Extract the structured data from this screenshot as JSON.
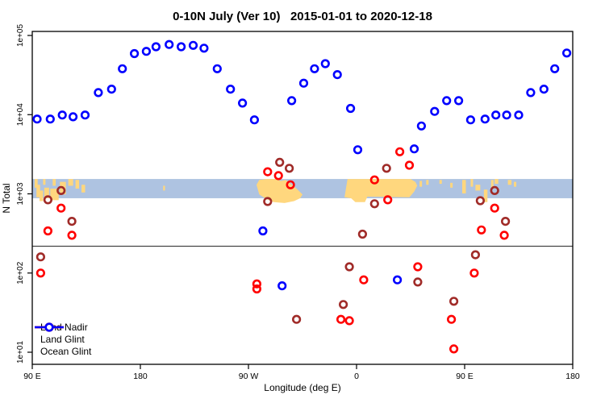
{
  "chart_data": {
    "type": "scatter",
    "title": "0-10N July (Ver 10)   2015-01-01 to 2020-12-18",
    "xlabel": "Longitude (deg E)",
    "ylabel": "N Total",
    "y_scale": "log",
    "xlim": [
      90,
      540
    ],
    "ylim_log10": [
      1,
      5
    ],
    "x_ticks": [
      {
        "lon": 90,
        "label": "90 E"
      },
      {
        "lon": 180,
        "label": "180"
      },
      {
        "lon": 270,
        "label": "90 W"
      },
      {
        "lon": 360,
        "label": "0"
      },
      {
        "lon": 450,
        "label": "90 E"
      },
      {
        "lon": 540,
        "label": "180"
      }
    ],
    "y_ticks": [
      {
        "log10": 1,
        "label": "1e+01"
      },
      {
        "log10": 2,
        "label": "1e+02"
      },
      {
        "log10": 3,
        "label": "1e+03"
      },
      {
        "log10": 4,
        "label": "1e+04"
      },
      {
        "log10": 5,
        "label": "1e+05"
      }
    ],
    "reference_line_N": 218,
    "grid": false,
    "legend_position": "bottom-left",
    "series": [
      {
        "name": "Land Nadir",
        "color": "#A02B28",
        "points": [
          [
            97,
            160
          ],
          [
            103,
            840
          ],
          [
            114,
            1100
          ],
          [
            123,
            450
          ],
          [
            286,
            800
          ],
          [
            296,
            2500
          ],
          [
            304,
            2100
          ],
          [
            310,
            26
          ],
          [
            349,
            40
          ],
          [
            354,
            120
          ],
          [
            365,
            310
          ],
          [
            375,
            750
          ],
          [
            385,
            2100
          ],
          [
            411,
            77
          ],
          [
            441,
            44
          ],
          [
            459,
            170
          ],
          [
            463,
            820
          ],
          [
            475,
            1100
          ],
          [
            484,
            450
          ]
        ]
      },
      {
        "name": "Land Glint",
        "color": "#FF0000",
        "points": [
          [
            97,
            100
          ],
          [
            103,
            340
          ],
          [
            114,
            660
          ],
          [
            123,
            300
          ],
          [
            277,
            73
          ],
          [
            277,
            63
          ],
          [
            286,
            1900
          ],
          [
            295,
            1700
          ],
          [
            305,
            1300
          ],
          [
            347,
            26
          ],
          [
            354,
            25
          ],
          [
            366,
            82
          ],
          [
            375,
            1500
          ],
          [
            386,
            840
          ],
          [
            396,
            3400
          ],
          [
            404,
            2300
          ],
          [
            411,
            120
          ],
          [
            439,
            26
          ],
          [
            441,
            11
          ],
          [
            458,
            100
          ],
          [
            464,
            350
          ],
          [
            475,
            660
          ],
          [
            483,
            300
          ]
        ]
      },
      {
        "name": "Ocean Glint",
        "color": "#0000FF",
        "points": [
          [
            94,
            8800
          ],
          [
            105,
            8800
          ],
          [
            115,
            9900
          ],
          [
            124,
            9400
          ],
          [
            134,
            9900
          ],
          [
            145,
            19000
          ],
          [
            156,
            21000
          ],
          [
            165,
            38000
          ],
          [
            175,
            59000
          ],
          [
            185,
            63000
          ],
          [
            193,
            72000
          ],
          [
            204,
            77000
          ],
          [
            214,
            72000
          ],
          [
            224,
            75000
          ],
          [
            233,
            69000
          ],
          [
            244,
            38000
          ],
          [
            255,
            21000
          ],
          [
            265,
            14000
          ],
          [
            275,
            8600
          ],
          [
            282,
            340
          ],
          [
            298,
            69
          ],
          [
            306,
            15000
          ],
          [
            316,
            25000
          ],
          [
            325,
            38000
          ],
          [
            334,
            44000
          ],
          [
            344,
            32000
          ],
          [
            355,
            12000
          ],
          [
            361,
            3600
          ],
          [
            394,
            82
          ],
          [
            408,
            3700
          ],
          [
            414,
            7200
          ],
          [
            425,
            11000
          ],
          [
            435,
            15000
          ],
          [
            445,
            15000
          ],
          [
            455,
            8600
          ],
          [
            467,
            8800
          ],
          [
            476,
            9900
          ],
          [
            485,
            9900
          ],
          [
            495,
            9900
          ],
          [
            505,
            19000
          ],
          [
            516,
            21000
          ],
          [
            525,
            38000
          ],
          [
            535,
            60000
          ]
        ]
      }
    ],
    "map_band": {
      "description": "0-10N latitude map strip overlay",
      "ocean_color": "#AEC3E1",
      "land_color": "#FFD77E",
      "N_top": 1540,
      "N_bottom": 880,
      "land_shapes": [
        {
          "type": "rect",
          "lon": [
            92,
            94.5
          ],
          "t": [
            0,
            0.45
          ]
        },
        {
          "type": "rect",
          "lon": [
            93.5,
            96.5
          ],
          "t": [
            0.3,
            0.95
          ]
        },
        {
          "type": "rect",
          "lon": [
            96,
            99
          ],
          "t": [
            0.6,
            1.15
          ]
        },
        {
          "type": "rect",
          "lon": [
            99,
            101
          ],
          "t": [
            0,
            0.3
          ]
        },
        {
          "type": "rect",
          "lon": [
            100,
            104
          ],
          "t": [
            0.45,
            1.0
          ]
        },
        {
          "type": "rect",
          "lon": [
            105,
            112
          ],
          "t": [
            0.5,
            1.1
          ]
        },
        {
          "type": "rect",
          "lon": [
            107,
            109.5
          ],
          "t": [
            0,
            0.35
          ]
        },
        {
          "type": "rect",
          "lon": [
            113,
            118
          ],
          "t": [
            0.15,
            0.8
          ]
        },
        {
          "type": "rect",
          "lon": [
            120,
            124
          ],
          "t": [
            0,
            0.35
          ]
        },
        {
          "type": "rect",
          "lon": [
            126,
            129
          ],
          "t": [
            0.05,
            0.5
          ]
        },
        {
          "type": "rect",
          "lon": [
            131,
            134
          ],
          "t": [
            0.3,
            0.7
          ]
        },
        {
          "type": "rect",
          "lon": [
            199,
            200.5
          ],
          "t": [
            0.35,
            0.6
          ]
        },
        {
          "type": "poly",
          "pts": [
            [
              276.7,
              0.3
            ],
            [
              279,
              0.05
            ],
            [
              285,
              0
            ],
            [
              292,
              0
            ],
            [
              297,
              0.1
            ],
            [
              301,
              0.05
            ],
            [
              305,
              0.25
            ],
            [
              310,
              0.5
            ],
            [
              315,
              0.8
            ],
            [
              313,
              1.0
            ],
            [
              308,
              1.15
            ],
            [
              300,
              1.25
            ],
            [
              291,
              1.2
            ],
            [
              285,
              1.05
            ],
            [
              279,
              0.8
            ]
          ]
        },
        {
          "type": "poly",
          "pts": [
            [
              350,
              0.95
            ],
            [
              352.5,
              0
            ],
            [
              405,
              0
            ],
            [
              409,
              0.15
            ],
            [
              410.5,
              0.35
            ],
            [
              408,
              0.65
            ],
            [
              404,
              0.95
            ],
            [
              369,
              0.92
            ],
            [
              367,
              1.2
            ],
            [
              359,
              1.2
            ],
            [
              355.5,
              1.0
            ]
          ]
        },
        {
          "type": "rect",
          "lon": [
            412.5,
            414.5
          ],
          "t": [
            0.1,
            0.4
          ]
        },
        {
          "type": "rect",
          "lon": [
            418,
            420
          ],
          "t": [
            0.05,
            0.3
          ]
        },
        {
          "type": "rect",
          "lon": [
            429,
            431
          ],
          "t": [
            0.05,
            0.25
          ]
        },
        {
          "type": "rect",
          "lon": [
            438,
            440
          ],
          "t": [
            0.2,
            0.45
          ]
        },
        {
          "type": "rect",
          "lon": [
            448,
            451
          ],
          "t": [
            0.05,
            0.75
          ]
        },
        {
          "type": "rect",
          "lon": [
            455,
            457
          ],
          "t": [
            0,
            0.4
          ]
        },
        {
          "type": "rect",
          "lon": [
            459,
            463
          ],
          "t": [
            0.3,
            0.6
          ]
        },
        {
          "type": "rect",
          "lon": [
            466,
            469
          ],
          "t": [
            0.55,
            1.2
          ]
        },
        {
          "type": "rect",
          "lon": [
            472,
            474
          ],
          "t": [
            0.05,
            0.5
          ]
        },
        {
          "type": "rect",
          "lon": [
            475,
            478
          ],
          "t": [
            0,
            0.25
          ]
        },
        {
          "type": "rect",
          "lon": [
            486,
            489
          ],
          "t": [
            0.05,
            0.3
          ]
        },
        {
          "type": "rect",
          "lon": [
            491,
            493
          ],
          "t": [
            0.15,
            0.4
          ]
        }
      ]
    },
    "axis_color": "#000000",
    "reference_line_color": "#444444"
  }
}
